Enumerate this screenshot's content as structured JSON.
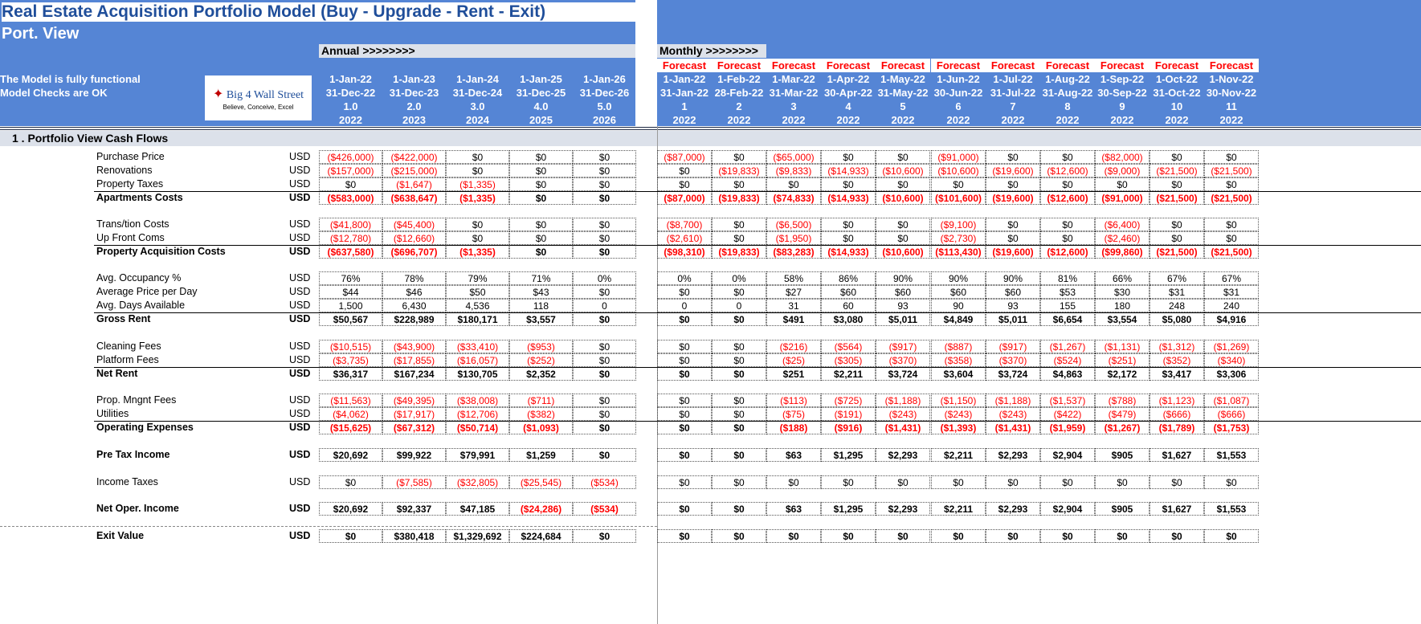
{
  "header": {
    "title": "Real Estate Acquisition Portfolio Model (Buy - Upgrade - Rent - Exit)",
    "subtitle": "Port. View",
    "status_line1": "The Model is fully functional",
    "status_line2": "Model Checks are OK",
    "logo_main": "Big 4 Wall Street",
    "logo_tagline": "Believe, Conceive, Excel",
    "annual_label": "Annual >>>>>>>>",
    "monthly_label": "Monthly >>>>>>>>"
  },
  "annual_cols": [
    {
      "start": "1-Jan-22",
      "end": "31-Dec-22",
      "period": "1.0",
      "year": "2022"
    },
    {
      "start": "1-Jan-23",
      "end": "31-Dec-23",
      "period": "2.0",
      "year": "2023"
    },
    {
      "start": "1-Jan-24",
      "end": "31-Dec-24",
      "period": "3.0",
      "year": "2024"
    },
    {
      "start": "1-Jan-25",
      "end": "31-Dec-25",
      "period": "4.0",
      "year": "2025"
    },
    {
      "start": "1-Jan-26",
      "end": "31-Dec-26",
      "period": "5.0",
      "year": "2026"
    }
  ],
  "monthly_cols": [
    {
      "flag": "Forecast",
      "start": "1-Jan-22",
      "end": "31-Jan-22",
      "period": "1",
      "year": "2022"
    },
    {
      "flag": "Forecast",
      "start": "1-Feb-22",
      "end": "28-Feb-22",
      "period": "2",
      "year": "2022"
    },
    {
      "flag": "Forecast",
      "start": "1-Mar-22",
      "end": "31-Mar-22",
      "period": "3",
      "year": "2022"
    },
    {
      "flag": "Forecast",
      "start": "1-Apr-22",
      "end": "30-Apr-22",
      "period": "4",
      "year": "2022"
    },
    {
      "flag": "Forecast",
      "start": "1-May-22",
      "end": "31-May-22",
      "period": "5",
      "year": "2022"
    },
    {
      "flag": "Forecast",
      "start": "1-Jun-22",
      "end": "30-Jun-22",
      "period": "6",
      "year": "2022"
    },
    {
      "flag": "Forecast",
      "start": "1-Jul-22",
      "end": "31-Jul-22",
      "period": "7",
      "year": "2022"
    },
    {
      "flag": "Forecast",
      "start": "1-Aug-22",
      "end": "31-Aug-22",
      "period": "8",
      "year": "2022"
    },
    {
      "flag": "Forecast",
      "start": "1-Sep-22",
      "end": "30-Sep-22",
      "period": "9",
      "year": "2022"
    },
    {
      "flag": "Forecast",
      "start": "1-Oct-22",
      "end": "31-Oct-22",
      "period": "10",
      "year": "2022"
    },
    {
      "flag": "Forecast",
      "start": "1-Nov-22",
      "end": "30-Nov-22",
      "period": "11",
      "year": "2022"
    }
  ],
  "section_title": "1 .  Portfolio View Cash Flows",
  "rows": [
    {
      "label": "Purchase Price",
      "unit": "USD",
      "bold": false,
      "annual": [
        "($426,000)",
        "($422,000)",
        "$0",
        "$0",
        "$0"
      ],
      "monthly": [
        "($87,000)",
        "$0",
        "($65,000)",
        "$0",
        "$0",
        "($91,000)",
        "$0",
        "$0",
        "($82,000)",
        "$0",
        "$0"
      ]
    },
    {
      "label": "Renovations",
      "unit": "USD",
      "bold": false,
      "annual": [
        "($157,000)",
        "($215,000)",
        "$0",
        "$0",
        "$0"
      ],
      "monthly": [
        "$0",
        "($19,833)",
        "($9,833)",
        "($14,933)",
        "($10,600)",
        "($10,600)",
        "($19,600)",
        "($12,600)",
        "($9,000)",
        "($21,500)",
        "($21,500)"
      ]
    },
    {
      "label": "Property Taxes",
      "unit": "USD",
      "bold": false,
      "annual": [
        "$0",
        "($1,647)",
        "($1,335)",
        "$0",
        "$0"
      ],
      "monthly": [
        "$0",
        "$0",
        "$0",
        "$0",
        "$0",
        "$0",
        "$0",
        "$0",
        "$0",
        "$0",
        "$0"
      ]
    },
    {
      "label": "Apartments Costs",
      "unit": "USD",
      "bold": true,
      "annual": [
        "($583,000)",
        "($638,647)",
        "($1,335)",
        "$0",
        "$0"
      ],
      "monthly": [
        "($87,000)",
        "($19,833)",
        "($74,833)",
        "($14,933)",
        "($10,600)",
        "($101,600)",
        "($19,600)",
        "($12,600)",
        "($91,000)",
        "($21,500)",
        "($21,500)"
      ]
    },
    {
      "label": "Trans/tion Costs",
      "unit": "USD",
      "bold": false,
      "annual": [
        "($41,800)",
        "($45,400)",
        "$0",
        "$0",
        "$0"
      ],
      "monthly": [
        "($8,700)",
        "$0",
        "($6,500)",
        "$0",
        "$0",
        "($9,100)",
        "$0",
        "$0",
        "($6,400)",
        "$0",
        "$0"
      ]
    },
    {
      "label": "Up Front Coms",
      "unit": "USD",
      "bold": false,
      "annual": [
        "($12,780)",
        "($12,660)",
        "$0",
        "$0",
        "$0"
      ],
      "monthly": [
        "($2,610)",
        "$0",
        "($1,950)",
        "$0",
        "$0",
        "($2,730)",
        "$0",
        "$0",
        "($2,460)",
        "$0",
        "$0"
      ]
    },
    {
      "label": "Property Acquisition Costs",
      "unit": "USD",
      "bold": true,
      "annual": [
        "($637,580)",
        "($696,707)",
        "($1,335)",
        "$0",
        "$0"
      ],
      "monthly": [
        "($98,310)",
        "($19,833)",
        "($83,283)",
        "($14,933)",
        "($10,600)",
        "($113,430)",
        "($19,600)",
        "($12,600)",
        "($99,860)",
        "($21,500)",
        "($21,500)"
      ]
    },
    {
      "label": "Avg. Occupancy %",
      "unit": "USD",
      "bold": false,
      "annual": [
        "76%",
        "78%",
        "79%",
        "71%",
        "0%"
      ],
      "monthly": [
        "0%",
        "0%",
        "58%",
        "86%",
        "90%",
        "90%",
        "90%",
        "81%",
        "66%",
        "67%",
        "67%"
      ]
    },
    {
      "label": "Average Price per Day",
      "unit": "USD",
      "bold": false,
      "annual": [
        "$44",
        "$46",
        "$50",
        "$43",
        "$0"
      ],
      "monthly": [
        "$0",
        "$0",
        "$27",
        "$60",
        "$60",
        "$60",
        "$60",
        "$53",
        "$30",
        "$31",
        "$31"
      ]
    },
    {
      "label": "Avg. Days Available",
      "unit": "USD",
      "bold": false,
      "annual": [
        "1,500",
        "6,430",
        "4,536",
        "118",
        "0"
      ],
      "monthly": [
        "0",
        "0",
        "31",
        "60",
        "93",
        "90",
        "93",
        "155",
        "180",
        "248",
        "240"
      ]
    },
    {
      "label": "Gross Rent",
      "unit": "USD",
      "bold": true,
      "annual": [
        "$50,567",
        "$228,989",
        "$180,171",
        "$3,557",
        "$0"
      ],
      "monthly": [
        "$0",
        "$0",
        "$491",
        "$3,080",
        "$5,011",
        "$4,849",
        "$5,011",
        "$6,654",
        "$3,554",
        "$5,080",
        "$4,916"
      ]
    },
    {
      "label": "Cleaning Fees",
      "unit": "USD",
      "bold": false,
      "annual": [
        "($10,515)",
        "($43,900)",
        "($33,410)",
        "($953)",
        "$0"
      ],
      "monthly": [
        "$0",
        "$0",
        "($216)",
        "($564)",
        "($917)",
        "($887)",
        "($917)",
        "($1,267)",
        "($1,131)",
        "($1,312)",
        "($1,269)"
      ]
    },
    {
      "label": "Platform Fees",
      "unit": "USD",
      "bold": false,
      "annual": [
        "($3,735)",
        "($17,855)",
        "($16,057)",
        "($252)",
        "$0"
      ],
      "monthly": [
        "$0",
        "$0",
        "($25)",
        "($305)",
        "($370)",
        "($358)",
        "($370)",
        "($524)",
        "($251)",
        "($352)",
        "($340)"
      ]
    },
    {
      "label": "Net Rent",
      "unit": "USD",
      "bold": true,
      "annual": [
        "$36,317",
        "$167,234",
        "$130,705",
        "$2,352",
        "$0"
      ],
      "monthly": [
        "$0",
        "$0",
        "$251",
        "$2,211",
        "$3,724",
        "$3,604",
        "$3,724",
        "$4,863",
        "$2,172",
        "$3,417",
        "$3,306"
      ]
    },
    {
      "label": "Prop. Mngnt Fees",
      "unit": "USD",
      "bold": false,
      "annual": [
        "($11,563)",
        "($49,395)",
        "($38,008)",
        "($711)",
        "$0"
      ],
      "monthly": [
        "$0",
        "$0",
        "($113)",
        "($725)",
        "($1,188)",
        "($1,150)",
        "($1,188)",
        "($1,537)",
        "($788)",
        "($1,123)",
        "($1,087)"
      ]
    },
    {
      "label": "Utilities",
      "unit": "USD",
      "bold": false,
      "annual": [
        "($4,062)",
        "($17,917)",
        "($12,706)",
        "($382)",
        "$0"
      ],
      "monthly": [
        "$0",
        "$0",
        "($75)",
        "($191)",
        "($243)",
        "($243)",
        "($243)",
        "($422)",
        "($479)",
        "($666)",
        "($666)"
      ]
    },
    {
      "label": "Operating Expenses",
      "unit": "USD",
      "bold": true,
      "annual": [
        "($15,625)",
        "($67,312)",
        "($50,714)",
        "($1,093)",
        "$0"
      ],
      "monthly": [
        "$0",
        "$0",
        "($188)",
        "($916)",
        "($1,431)",
        "($1,393)",
        "($1,431)",
        "($1,959)",
        "($1,267)",
        "($1,789)",
        "($1,753)"
      ]
    },
    {
      "label": "Pre Tax Income",
      "unit": "USD",
      "bold": true,
      "annual": [
        "$20,692",
        "$99,922",
        "$79,991",
        "$1,259",
        "$0"
      ],
      "monthly": [
        "$0",
        "$0",
        "$63",
        "$1,295",
        "$2,293",
        "$2,211",
        "$2,293",
        "$2,904",
        "$905",
        "$1,627",
        "$1,553"
      ]
    },
    {
      "label": "Income Taxes",
      "unit": "USD",
      "bold": false,
      "annual": [
        "$0",
        "($7,585)",
        "($32,805)",
        "($25,545)",
        "($534)"
      ],
      "monthly": [
        "$0",
        "$0",
        "$0",
        "$0",
        "$0",
        "$0",
        "$0",
        "$0",
        "$0",
        "$0",
        "$0"
      ]
    },
    {
      "label": "Net Oper. Income",
      "unit": "USD",
      "bold": true,
      "annual": [
        "$20,692",
        "$92,337",
        "$47,185",
        "($24,286)",
        "($534)"
      ],
      "monthly": [
        "$0",
        "$0",
        "$63",
        "$1,295",
        "$2,293",
        "$2,211",
        "$2,293",
        "$2,904",
        "$905",
        "$1,627",
        "$1,553"
      ]
    },
    {
      "label": "Exit Value",
      "unit": "USD",
      "bold": true,
      "annual": [
        "$0",
        "$380,418",
        "$1,329,692",
        "$224,684",
        "$0"
      ],
      "monthly": [
        "$0",
        "$0",
        "$0",
        "$0",
        "$0",
        "$0",
        "$0",
        "$0",
        "$0",
        "$0",
        "$0"
      ]
    }
  ]
}
